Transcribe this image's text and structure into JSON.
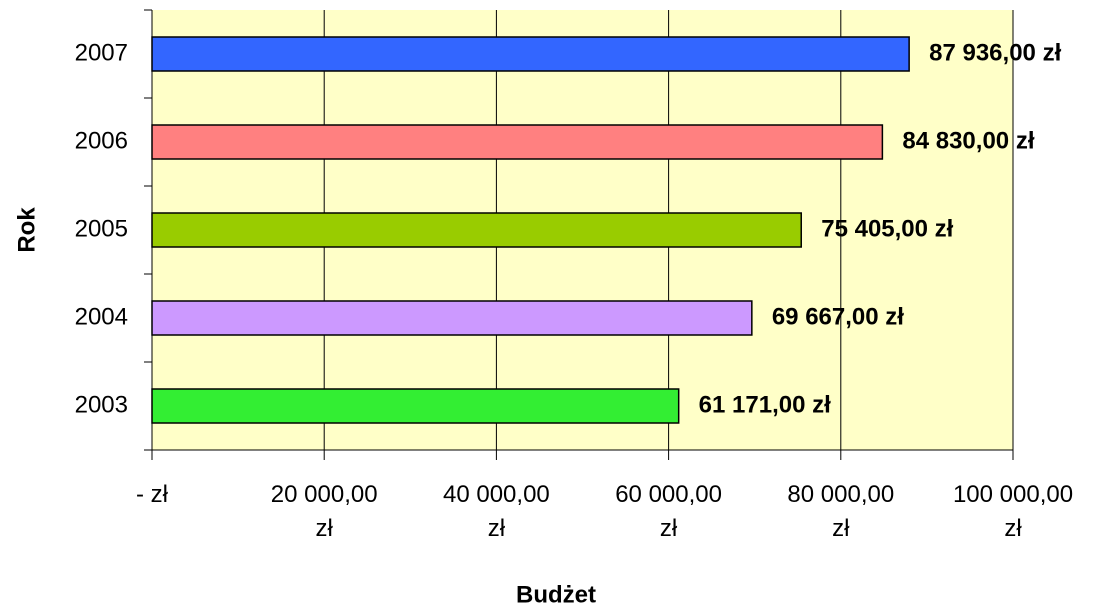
{
  "chart_data": {
    "type": "bar",
    "orientation": "horizontal",
    "x_label": "Budżet",
    "y_label": "Rok",
    "categories": [
      "2003",
      "2004",
      "2005",
      "2006",
      "2007"
    ],
    "values": [
      61171,
      69667,
      75405,
      84830,
      87936
    ],
    "value_labels": [
      "61 171,00 zł",
      "69 667,00 zł",
      "75 405,00 zł",
      "84 830,00 zł",
      "87 936,00 zł"
    ],
    "colors": [
      "#33ee33",
      "#cc99ff",
      "#99cc00",
      "#ff8080",
      "#3366ff"
    ],
    "xlim": [
      0,
      100000
    ],
    "xticks": [
      {
        "value": 0,
        "label": "- zł"
      },
      {
        "value": 20000,
        "label": "20 000,00 zł"
      },
      {
        "value": 40000,
        "label": "40 000,00 zł"
      },
      {
        "value": 60000,
        "label": "60 000,00 zł"
      },
      {
        "value": 80000,
        "label": "80 000,00 zł"
      },
      {
        "value": 100000,
        "label": "100 000,00 zł"
      }
    ],
    "grid": true,
    "background": "#ffffc8"
  }
}
